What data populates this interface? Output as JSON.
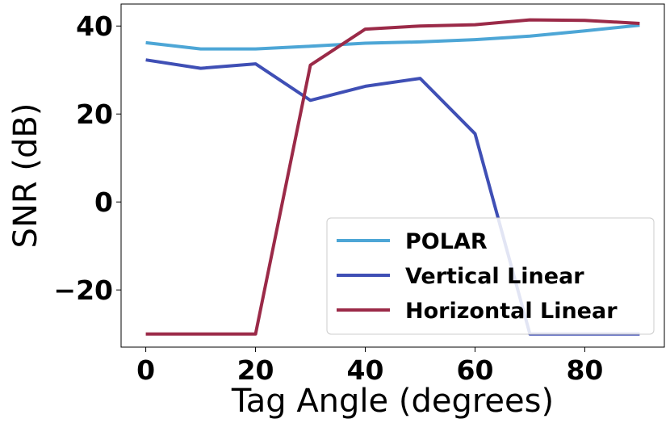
{
  "chart_data": {
    "type": "line",
    "title": "",
    "xlabel": "Tag Angle (degrees)",
    "ylabel": "SNR (dB)",
    "xlim": [
      -4.5,
      94.5
    ],
    "ylim": [
      -33,
      45
    ],
    "xticks": [
      0,
      20,
      40,
      60,
      80
    ],
    "yticks": [
      -20,
      0,
      20,
      40
    ],
    "xtick_labels": [
      "0",
      "20",
      "40",
      "60",
      "80"
    ],
    "ytick_labels": [
      "−20",
      "0",
      "20",
      "40"
    ],
    "legend_position": "lower right",
    "grid": false,
    "series": [
      {
        "name": "POLAR",
        "color": "#4da6d6",
        "x": [
          0,
          10,
          20,
          30,
          40,
          50,
          60,
          70,
          80,
          90
        ],
        "y": [
          36.2,
          34.8,
          34.8,
          35.4,
          36.1,
          36.4,
          36.9,
          37.7,
          38.9,
          40.2
        ]
      },
      {
        "name": "Vertical Linear",
        "color": "#3f4fb5",
        "x": [
          0,
          10,
          20,
          30,
          40,
          50,
          60,
          70,
          80,
          90
        ],
        "y": [
          32.3,
          30.4,
          31.4,
          23.1,
          26.3,
          28.1,
          15.5,
          -30,
          -30,
          -30
        ]
      },
      {
        "name": "Horizontal Linear",
        "color": "#9b2a48",
        "x": [
          0,
          10,
          20,
          30,
          40,
          50,
          60,
          70,
          80,
          90
        ],
        "y": [
          -30,
          -30,
          -30,
          31.1,
          39.3,
          40.0,
          40.3,
          41.4,
          41.3,
          40.6
        ]
      }
    ]
  }
}
